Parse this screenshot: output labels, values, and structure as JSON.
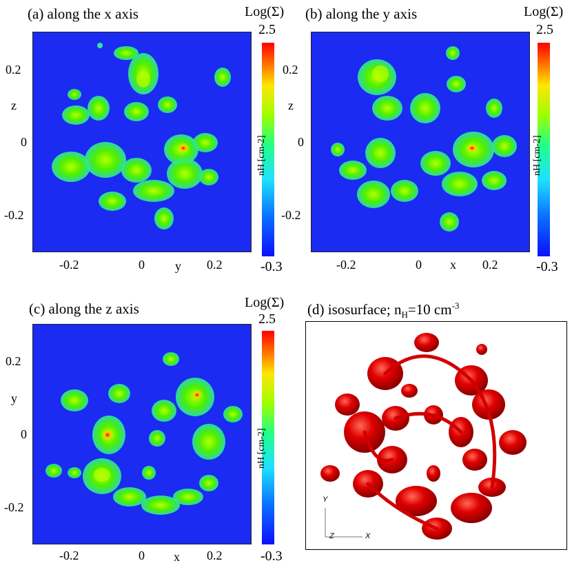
{
  "panels": {
    "a": {
      "title": "(a) along the x axis",
      "cbar_title": "Log(Σ)",
      "cbar_max": "2.5",
      "cbar_min": "-0.3",
      "cbar_unit": "nH [cm-2]",
      "x_ticks": [
        "-0.2",
        "0",
        "y",
        "0.2"
      ],
      "y_ticks": [
        "0.2",
        "z",
        "0",
        "-0.2"
      ]
    },
    "b": {
      "title": "(b) along the y axis",
      "cbar_title": "Log(Σ)",
      "cbar_max": "2.5",
      "cbar_min": "-0.3",
      "cbar_unit": "nH [cm-2]",
      "x_ticks": [
        "-0.2",
        "0",
        "x",
        "0.2"
      ],
      "y_ticks": [
        "0.2",
        "z",
        "0",
        "-0.2"
      ]
    },
    "c": {
      "title": "(c) along the z axis",
      "cbar_title": "Log(Σ)",
      "cbar_max": "2.5",
      "cbar_min": "-0.3",
      "cbar_unit": "nH [cm-2]",
      "x_ticks": [
        "-0.2",
        "0",
        "x",
        "0.2"
      ],
      "y_ticks": [
        "0.2",
        "y",
        "0",
        "-0.2"
      ]
    },
    "d": {
      "title_pre": "(d) isosurface; n",
      "title_sub": "H",
      "title_post": "=10 cm",
      "title_sup": "-3",
      "axis_y": "Y",
      "axis_z": "Z",
      "axis_x": "X"
    }
  },
  "colors": {
    "background": "#1b2bf2",
    "isosurface": "#e00000"
  }
}
